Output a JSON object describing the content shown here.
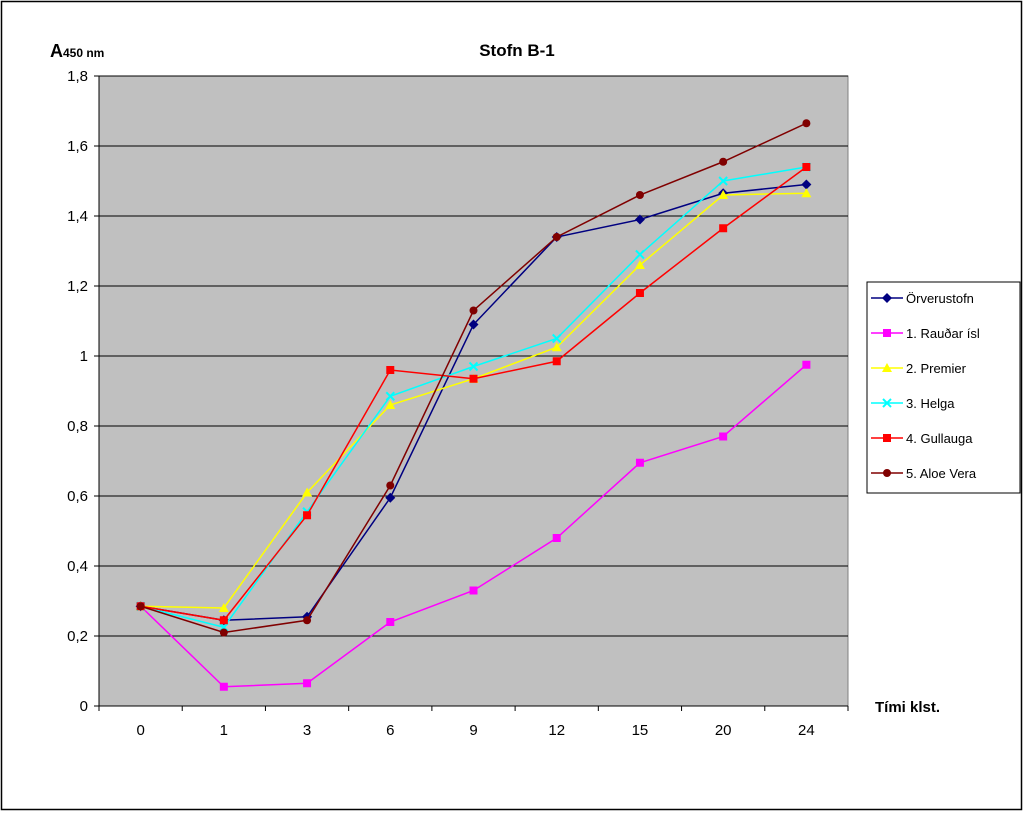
{
  "chart_data": {
    "type": "line",
    "title": "Stofn B-1",
    "ylabel_main": "A",
    "ylabel_sub": "450 nm",
    "xlabel": "Tími klst.",
    "categories": [
      "0",
      "1",
      "3",
      "6",
      "9",
      "12",
      "15",
      "20",
      "24"
    ],
    "ylim": [
      0,
      1.8
    ],
    "yticks": [
      "0",
      "0,2",
      "0,4",
      "0,6",
      "0,8",
      "1",
      "1,2",
      "1,4",
      "1,6",
      "1,8"
    ],
    "grid": true,
    "legend_position": "right",
    "plot_background": "#c0c0c0",
    "series": [
      {
        "name": "Örverustofn",
        "color": "#000080",
        "marker": "diamond",
        "values": [
          0.285,
          0.245,
          0.255,
          0.595,
          1.09,
          1.34,
          1.39,
          1.465,
          1.49
        ]
      },
      {
        "name": "1. Rauðar ísl",
        "color": "#ff00ff",
        "marker": "square",
        "values": [
          0.285,
          0.055,
          0.065,
          0.24,
          0.33,
          0.48,
          0.695,
          0.77,
          0.975
        ]
      },
      {
        "name": "2. Premier",
        "color": "#ffff00",
        "marker": "triangle",
        "values": [
          0.285,
          0.28,
          0.61,
          0.86,
          0.935,
          1.025,
          1.26,
          1.46,
          1.465
        ]
      },
      {
        "name": "3. Helga",
        "color": "#00ffff",
        "marker": "x",
        "values": [
          0.285,
          0.225,
          0.555,
          0.885,
          0.97,
          1.05,
          1.29,
          1.5,
          1.54
        ]
      },
      {
        "name": "4. Gullauga",
        "color": "#ff0000",
        "marker": "square",
        "values": [
          0.285,
          0.245,
          0.545,
          0.96,
          0.935,
          0.985,
          1.18,
          1.365,
          1.54
        ]
      },
      {
        "name": "5. Aloe Vera",
        "color": "#800000",
        "marker": "circle",
        "values": [
          0.285,
          0.21,
          0.245,
          0.63,
          1.13,
          1.34,
          1.46,
          1.555,
          1.665
        ]
      }
    ]
  }
}
